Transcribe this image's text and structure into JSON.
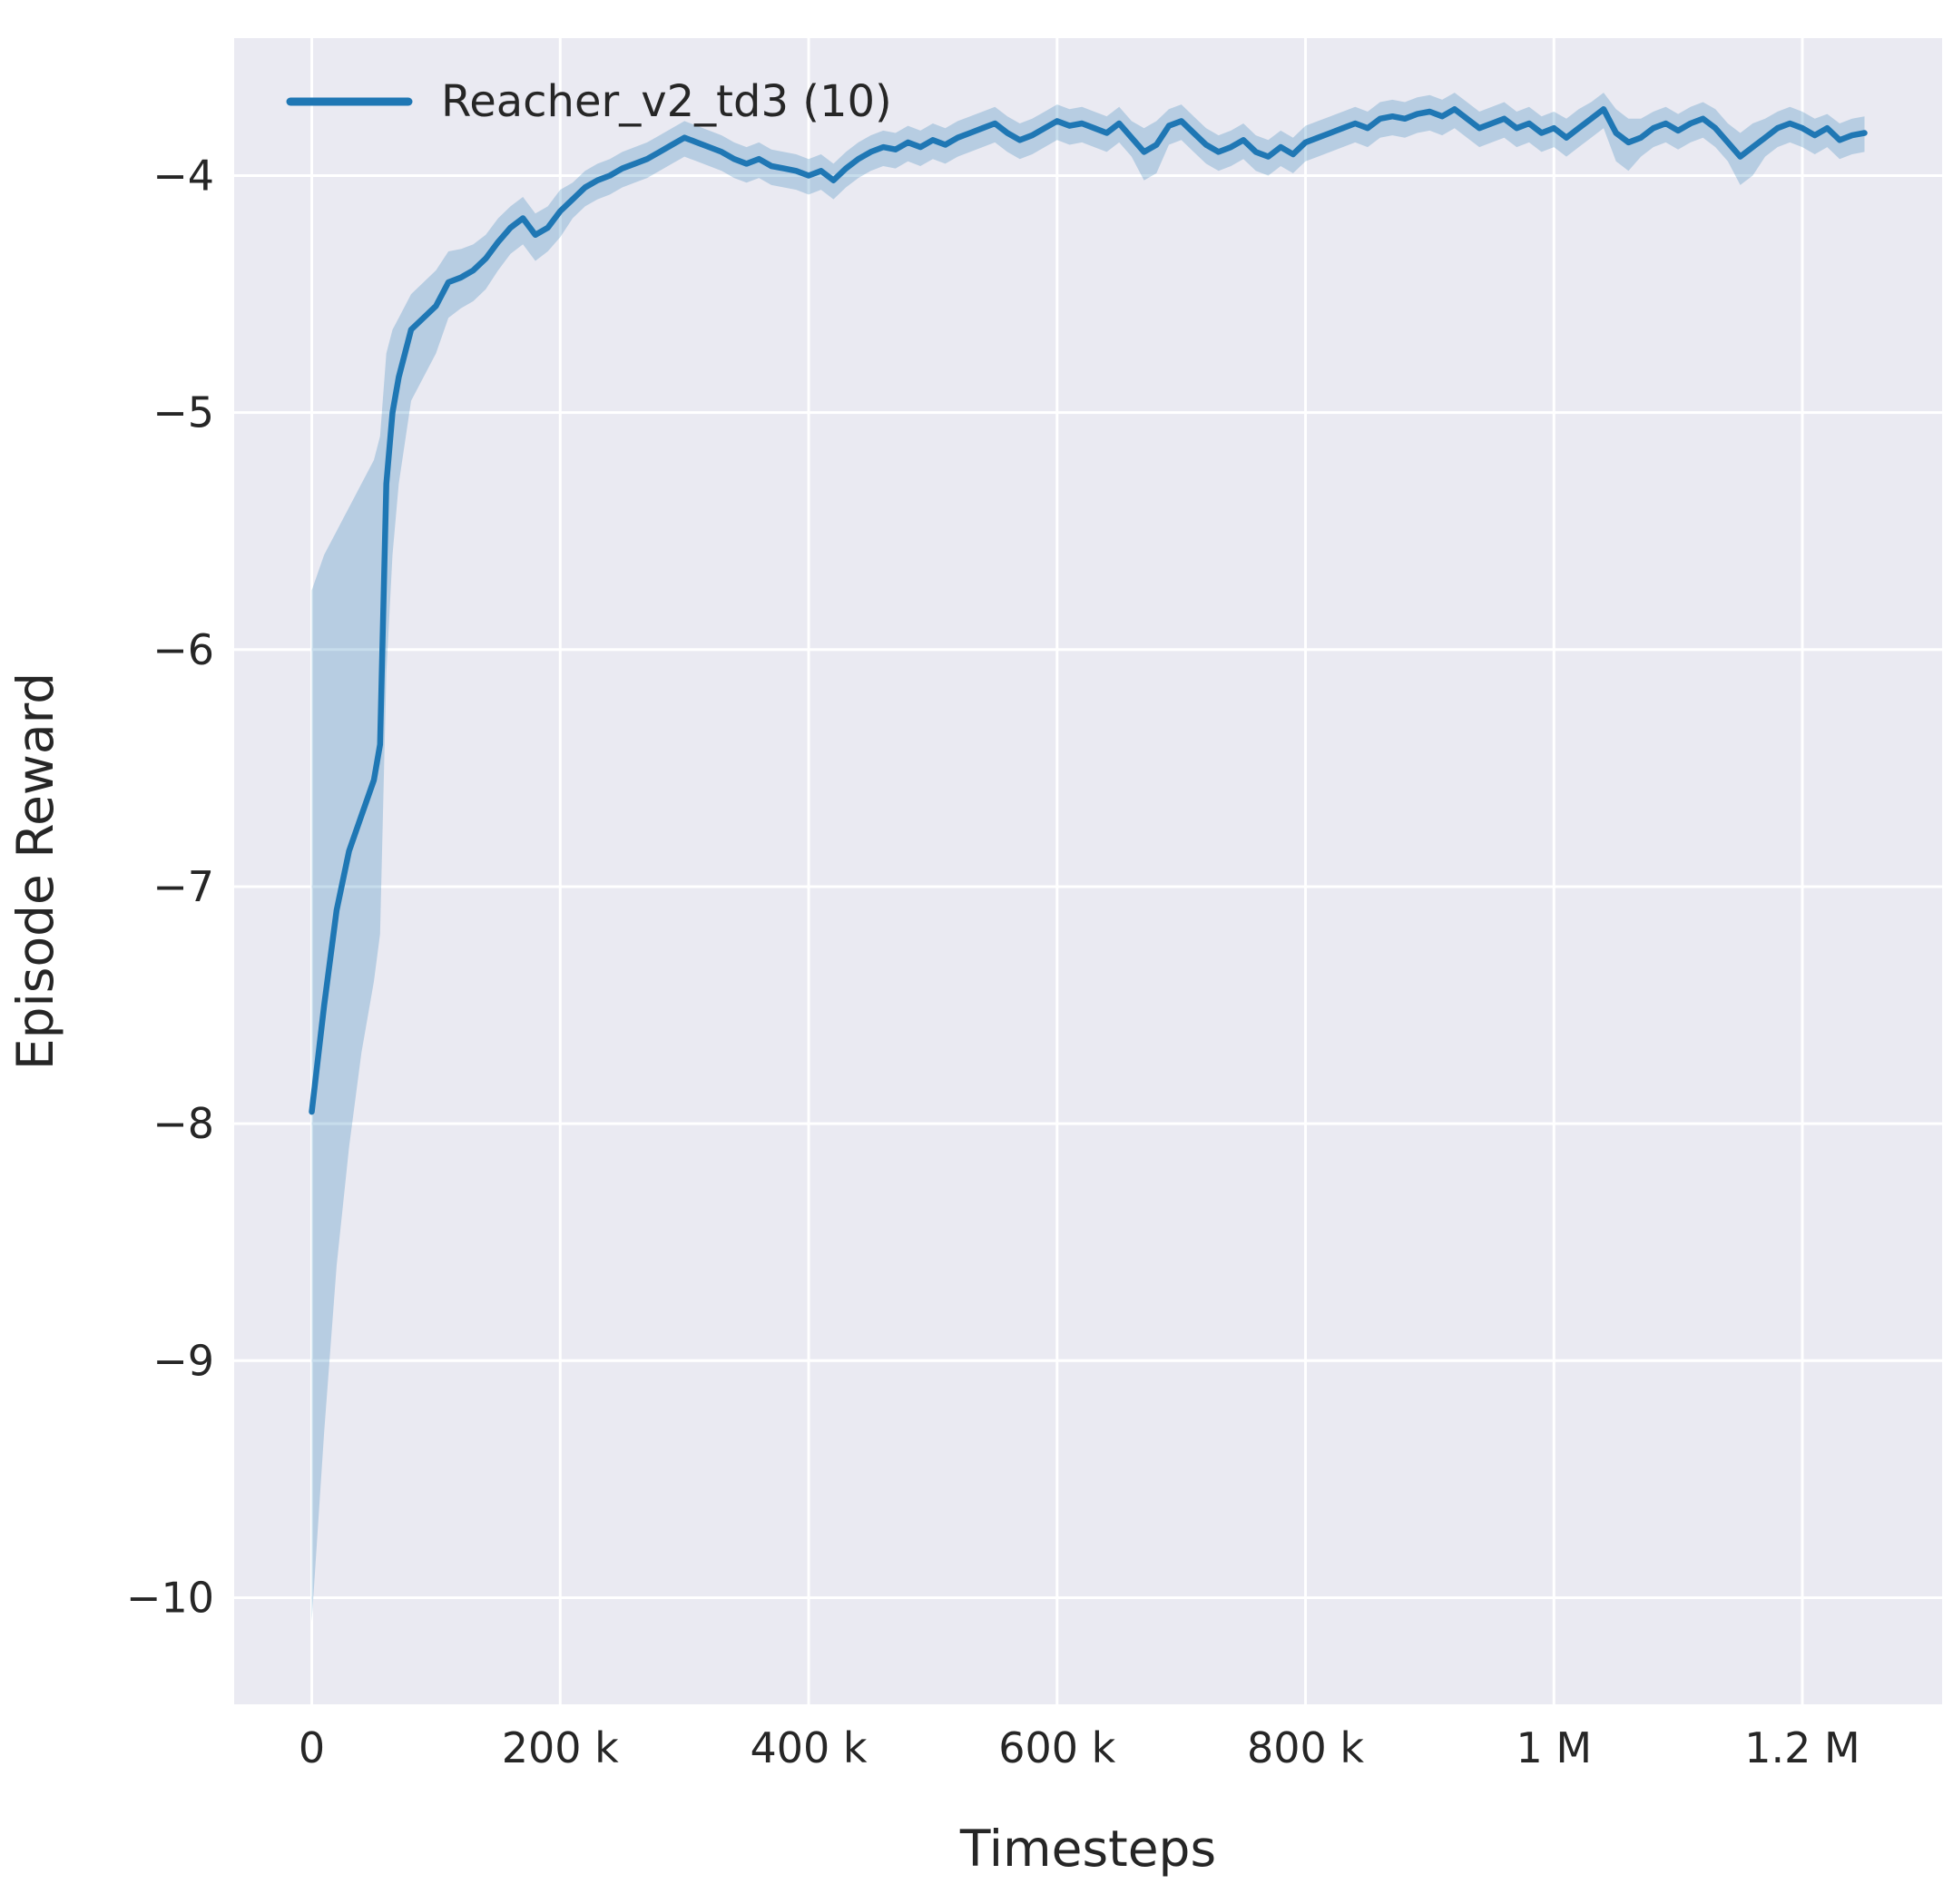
{
  "figure": {
    "background": "#ffffff",
    "plot_background": "#eaeaf2",
    "grid_color": "#ffffff",
    "text_color": "#262626"
  },
  "chart_data": {
    "type": "line",
    "title": "",
    "xlabel": "Timesteps",
    "ylabel": "Episode Reward",
    "grid": true,
    "legend_position": "upper left",
    "x_unit": "thousands of timesteps",
    "xlim": [
      -62.5,
      1312.5
    ],
    "ylim": [
      -10.45,
      -3.42
    ],
    "xticks": {
      "values": [
        0,
        200,
        400,
        600,
        800,
        1000,
        1200
      ],
      "labels": [
        "0",
        "200 k",
        "400 k",
        "600 k",
        "800 k",
        "1 M",
        "1.2 M"
      ]
    },
    "yticks": {
      "values": [
        -4,
        -5,
        -6,
        -7,
        -8,
        -9,
        -10
      ],
      "labels": [
        "−4",
        "−5",
        "−6",
        "−7",
        "−8",
        "−9",
        "−10"
      ]
    },
    "series": [
      {
        "name": "Reacher_v2_td3 (10)",
        "color": "#1f77b4",
        "band_opacity": 0.25,
        "point_format": "[x_k, band_lower, mean, band_upper]",
        "points": [
          [
            0,
            -10.1,
            -7.95,
            -5.75
          ],
          [
            10,
            -9.3,
            -7.5,
            -5.6
          ],
          [
            20,
            -8.6,
            -7.1,
            -5.5
          ],
          [
            30,
            -8.1,
            -6.85,
            -5.4
          ],
          [
            40,
            -7.7,
            -6.7,
            -5.3
          ],
          [
            50,
            -7.4,
            -6.55,
            -5.2
          ],
          [
            55,
            -7.2,
            -6.4,
            -5.1
          ],
          [
            60,
            -6.1,
            -5.3,
            -4.75
          ],
          [
            65,
            -5.6,
            -5.0,
            -4.65
          ],
          [
            70,
            -5.3,
            -4.85,
            -4.6
          ],
          [
            80,
            -4.95,
            -4.65,
            -4.5
          ],
          [
            90,
            -4.85,
            -4.6,
            -4.45
          ],
          [
            100,
            -4.75,
            -4.55,
            -4.4
          ],
          [
            110,
            -4.6,
            -4.45,
            -4.32
          ],
          [
            120,
            -4.56,
            -4.43,
            -4.31
          ],
          [
            130,
            -4.53,
            -4.4,
            -4.29
          ],
          [
            140,
            -4.48,
            -4.35,
            -4.25
          ],
          [
            150,
            -4.4,
            -4.28,
            -4.18
          ],
          [
            160,
            -4.33,
            -4.22,
            -4.13
          ],
          [
            170,
            -4.29,
            -4.18,
            -4.09
          ],
          [
            180,
            -4.36,
            -4.25,
            -4.16
          ],
          [
            190,
            -4.32,
            -4.22,
            -4.13
          ],
          [
            200,
            -4.26,
            -4.15,
            -4.06
          ],
          [
            210,
            -4.18,
            -4.1,
            -4.03
          ],
          [
            220,
            -4.13,
            -4.05,
            -3.98
          ],
          [
            230,
            -4.1,
            -4.02,
            -3.95
          ],
          [
            240,
            -4.08,
            -4.0,
            -3.93
          ],
          [
            250,
            -4.05,
            -3.97,
            -3.9
          ],
          [
            260,
            -4.03,
            -3.95,
            -3.88
          ],
          [
            270,
            -4.01,
            -3.93,
            -3.86
          ],
          [
            280,
            -3.98,
            -3.9,
            -3.83
          ],
          [
            290,
            -3.95,
            -3.87,
            -3.8
          ],
          [
            300,
            -3.92,
            -3.84,
            -3.77
          ],
          [
            310,
            -3.94,
            -3.86,
            -3.79
          ],
          [
            320,
            -3.96,
            -3.88,
            -3.81
          ],
          [
            330,
            -3.98,
            -3.9,
            -3.83
          ],
          [
            340,
            -4.01,
            -3.93,
            -3.86
          ],
          [
            350,
            -4.03,
            -3.95,
            -3.88
          ],
          [
            360,
            -4.01,
            -3.93,
            -3.86
          ],
          [
            370,
            -4.04,
            -3.96,
            -3.89
          ],
          [
            380,
            -4.05,
            -3.97,
            -3.9
          ],
          [
            390,
            -4.06,
            -3.98,
            -3.91
          ],
          [
            400,
            -4.08,
            -4.0,
            -3.93
          ],
          [
            410,
            -4.06,
            -3.98,
            -3.91
          ],
          [
            420,
            -4.1,
            -4.02,
            -3.95
          ],
          [
            430,
            -4.05,
            -3.97,
            -3.9
          ],
          [
            440,
            -4.01,
            -3.93,
            -3.86
          ],
          [
            450,
            -3.98,
            -3.9,
            -3.83
          ],
          [
            460,
            -3.96,
            -3.88,
            -3.81
          ],
          [
            470,
            -3.97,
            -3.89,
            -3.82
          ],
          [
            480,
            -3.94,
            -3.86,
            -3.79
          ],
          [
            490,
            -3.96,
            -3.88,
            -3.81
          ],
          [
            500,
            -3.93,
            -3.85,
            -3.78
          ],
          [
            510,
            -3.95,
            -3.87,
            -3.8
          ],
          [
            520,
            -3.92,
            -3.84,
            -3.77
          ],
          [
            530,
            -3.9,
            -3.82,
            -3.75
          ],
          [
            540,
            -3.88,
            -3.8,
            -3.73
          ],
          [
            550,
            -3.86,
            -3.78,
            -3.71
          ],
          [
            560,
            -3.9,
            -3.82,
            -3.75
          ],
          [
            570,
            -3.93,
            -3.85,
            -3.78
          ],
          [
            580,
            -3.91,
            -3.83,
            -3.76
          ],
          [
            590,
            -3.88,
            -3.8,
            -3.73
          ],
          [
            600,
            -3.85,
            -3.77,
            -3.7
          ],
          [
            610,
            -3.87,
            -3.79,
            -3.72
          ],
          [
            620,
            -3.86,
            -3.78,
            -3.71
          ],
          [
            630,
            -3.88,
            -3.8,
            -3.73
          ],
          [
            640,
            -3.9,
            -3.82,
            -3.75
          ],
          [
            650,
            -3.86,
            -3.78,
            -3.71
          ],
          [
            660,
            -3.92,
            -3.84,
            -3.77
          ],
          [
            670,
            -4.02,
            -3.9,
            -3.8
          ],
          [
            680,
            -3.99,
            -3.87,
            -3.77
          ],
          [
            690,
            -3.87,
            -3.79,
            -3.72
          ],
          [
            700,
            -3.85,
            -3.77,
            -3.7
          ],
          [
            710,
            -3.9,
            -3.82,
            -3.75
          ],
          [
            720,
            -3.95,
            -3.87,
            -3.8
          ],
          [
            730,
            -3.98,
            -3.9,
            -3.83
          ],
          [
            740,
            -3.96,
            -3.88,
            -3.81
          ],
          [
            750,
            -3.93,
            -3.85,
            -3.78
          ],
          [
            760,
            -3.98,
            -3.9,
            -3.83
          ],
          [
            770,
            -4.0,
            -3.92,
            -3.85
          ],
          [
            780,
            -3.96,
            -3.88,
            -3.81
          ],
          [
            790,
            -3.99,
            -3.91,
            -3.84
          ],
          [
            800,
            -3.94,
            -3.86,
            -3.79
          ],
          [
            810,
            -3.92,
            -3.84,
            -3.77
          ],
          [
            820,
            -3.9,
            -3.82,
            -3.75
          ],
          [
            830,
            -3.88,
            -3.8,
            -3.73
          ],
          [
            840,
            -3.86,
            -3.78,
            -3.71
          ],
          [
            850,
            -3.88,
            -3.8,
            -3.73
          ],
          [
            860,
            -3.84,
            -3.76,
            -3.69
          ],
          [
            870,
            -3.83,
            -3.75,
            -3.68
          ],
          [
            880,
            -3.84,
            -3.76,
            -3.69
          ],
          [
            890,
            -3.82,
            -3.74,
            -3.67
          ],
          [
            900,
            -3.81,
            -3.73,
            -3.66
          ],
          [
            910,
            -3.83,
            -3.75,
            -3.68
          ],
          [
            920,
            -3.8,
            -3.72,
            -3.65
          ],
          [
            930,
            -3.84,
            -3.76,
            -3.69
          ],
          [
            940,
            -3.88,
            -3.8,
            -3.73
          ],
          [
            950,
            -3.86,
            -3.78,
            -3.71
          ],
          [
            960,
            -3.84,
            -3.76,
            -3.69
          ],
          [
            970,
            -3.88,
            -3.8,
            -3.73
          ],
          [
            980,
            -3.86,
            -3.78,
            -3.71
          ],
          [
            990,
            -3.9,
            -3.82,
            -3.75
          ],
          [
            1000,
            -3.88,
            -3.8,
            -3.73
          ],
          [
            1010,
            -3.92,
            -3.84,
            -3.76
          ],
          [
            1020,
            -3.88,
            -3.8,
            -3.72
          ],
          [
            1030,
            -3.84,
            -3.76,
            -3.69
          ],
          [
            1040,
            -3.8,
            -3.72,
            -3.65
          ],
          [
            1050,
            -3.94,
            -3.82,
            -3.72
          ],
          [
            1060,
            -3.98,
            -3.86,
            -3.76
          ],
          [
            1070,
            -3.92,
            -3.84,
            -3.76
          ],
          [
            1080,
            -3.88,
            -3.8,
            -3.73
          ],
          [
            1090,
            -3.86,
            -3.78,
            -3.71
          ],
          [
            1100,
            -3.89,
            -3.81,
            -3.74
          ],
          [
            1110,
            -3.86,
            -3.78,
            -3.71
          ],
          [
            1120,
            -3.84,
            -3.76,
            -3.69
          ],
          [
            1130,
            -3.88,
            -3.8,
            -3.72
          ],
          [
            1140,
            -3.94,
            -3.86,
            -3.78
          ],
          [
            1150,
            -4.04,
            -3.92,
            -3.82
          ],
          [
            1160,
            -4.0,
            -3.88,
            -3.78
          ],
          [
            1170,
            -3.92,
            -3.84,
            -3.76
          ],
          [
            1180,
            -3.88,
            -3.8,
            -3.73
          ],
          [
            1190,
            -3.86,
            -3.78,
            -3.71
          ],
          [
            1200,
            -3.88,
            -3.8,
            -3.73
          ],
          [
            1210,
            -3.91,
            -3.83,
            -3.76
          ],
          [
            1220,
            -3.88,
            -3.8,
            -3.74
          ],
          [
            1230,
            -3.93,
            -3.85,
            -3.78
          ],
          [
            1240,
            -3.91,
            -3.83,
            -3.76
          ],
          [
            1250,
            -3.9,
            -3.82,
            -3.75
          ]
        ]
      }
    ]
  }
}
